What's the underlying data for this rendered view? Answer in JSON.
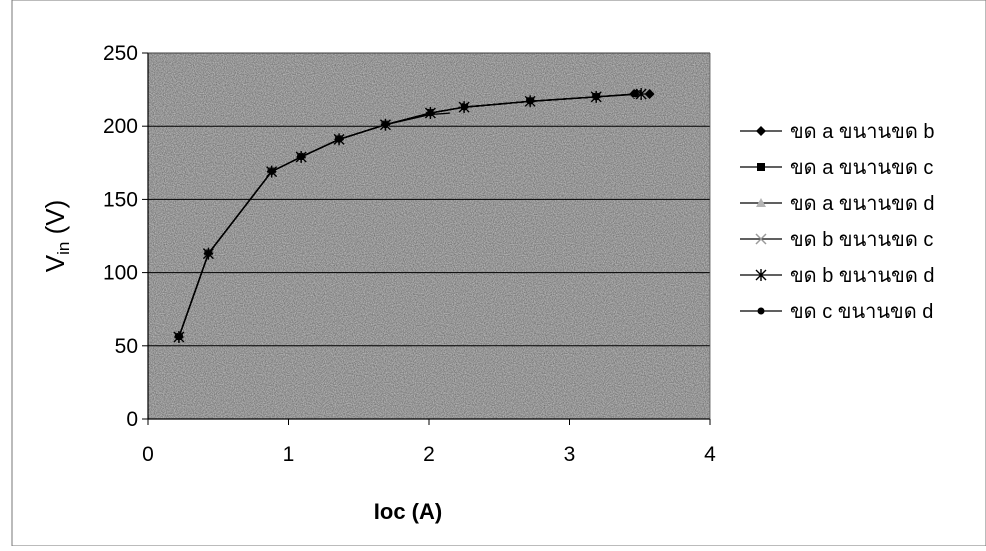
{
  "chart_data": {
    "type": "line",
    "title": "",
    "xlabel": "Ioc (A)",
    "ylabel_main": "V",
    "ylabel_sub": "in",
    "ylabel_unit": " (V)",
    "xlim": [
      0,
      4
    ],
    "ylim": [
      0,
      250
    ],
    "xticks": [
      "0",
      "1",
      "2",
      "3",
      "4"
    ],
    "yticks": [
      "0",
      "50",
      "100",
      "150",
      "200",
      "250"
    ],
    "grid": "horizontal",
    "legend_position": "right",
    "series": [
      {
        "name": "ขด a ขนานขด b",
        "marker": "diamond",
        "x": [
          0.22,
          0.43,
          0.88,
          1.09,
          1.36,
          1.69,
          2.01,
          2.25,
          2.72,
          3.19,
          3.46,
          3.57
        ],
        "y": [
          56,
          113,
          169,
          179,
          191,
          201,
          209,
          213,
          217,
          220,
          222,
          222
        ]
      },
      {
        "name": "ขด a ขนานขด c",
        "marker": "square",
        "x": [
          0.22,
          0.43,
          0.88,
          1.09,
          1.36,
          1.69,
          2.01,
          2.25,
          2.72,
          3.19,
          3.48
        ],
        "y": [
          56,
          113,
          169,
          179,
          191,
          201,
          209,
          213,
          217,
          220,
          222
        ]
      },
      {
        "name": "ขด a ขนานขด d",
        "marker": "triangle",
        "x": [
          0.22,
          0.43,
          0.88,
          1.09,
          1.36,
          1.69,
          2.01,
          2.25,
          2.72,
          3.19,
          3.49
        ],
        "y": [
          56,
          113,
          169,
          179,
          191,
          201,
          209,
          213,
          217,
          220,
          222
        ]
      },
      {
        "name": "ขด b ขนานขด c",
        "marker": "x",
        "x": [
          0.22,
          0.43,
          0.88,
          1.09,
          1.36,
          1.69,
          2.01,
          2.16,
          2.2,
          2.23
        ],
        "y": [
          56,
          113,
          169,
          179,
          191,
          201,
          208,
          209,
          213,
          213
        ]
      },
      {
        "name": "ขด b ขนานขด d",
        "marker": "star",
        "x": [
          0.22,
          0.43,
          0.88,
          1.09,
          1.36,
          1.69,
          2.01,
          2.25,
          2.72,
          3.19,
          3.51
        ],
        "y": [
          56,
          113,
          169,
          179,
          191,
          201,
          209,
          213,
          217,
          220,
          222
        ]
      },
      {
        "name": "ขด c ขนานขด d",
        "marker": "circle",
        "x": [
          0.22,
          0.43,
          0.88,
          1.09,
          1.36,
          1.69,
          2.01,
          2.25,
          2.72,
          3.19,
          3.47
        ],
        "y": [
          56,
          113,
          169,
          179,
          191,
          201,
          209,
          213,
          217,
          220,
          222
        ]
      }
    ]
  },
  "colors": {
    "line": "#000000",
    "plot_bg": "#c9c9c9",
    "grid": "#000000"
  }
}
